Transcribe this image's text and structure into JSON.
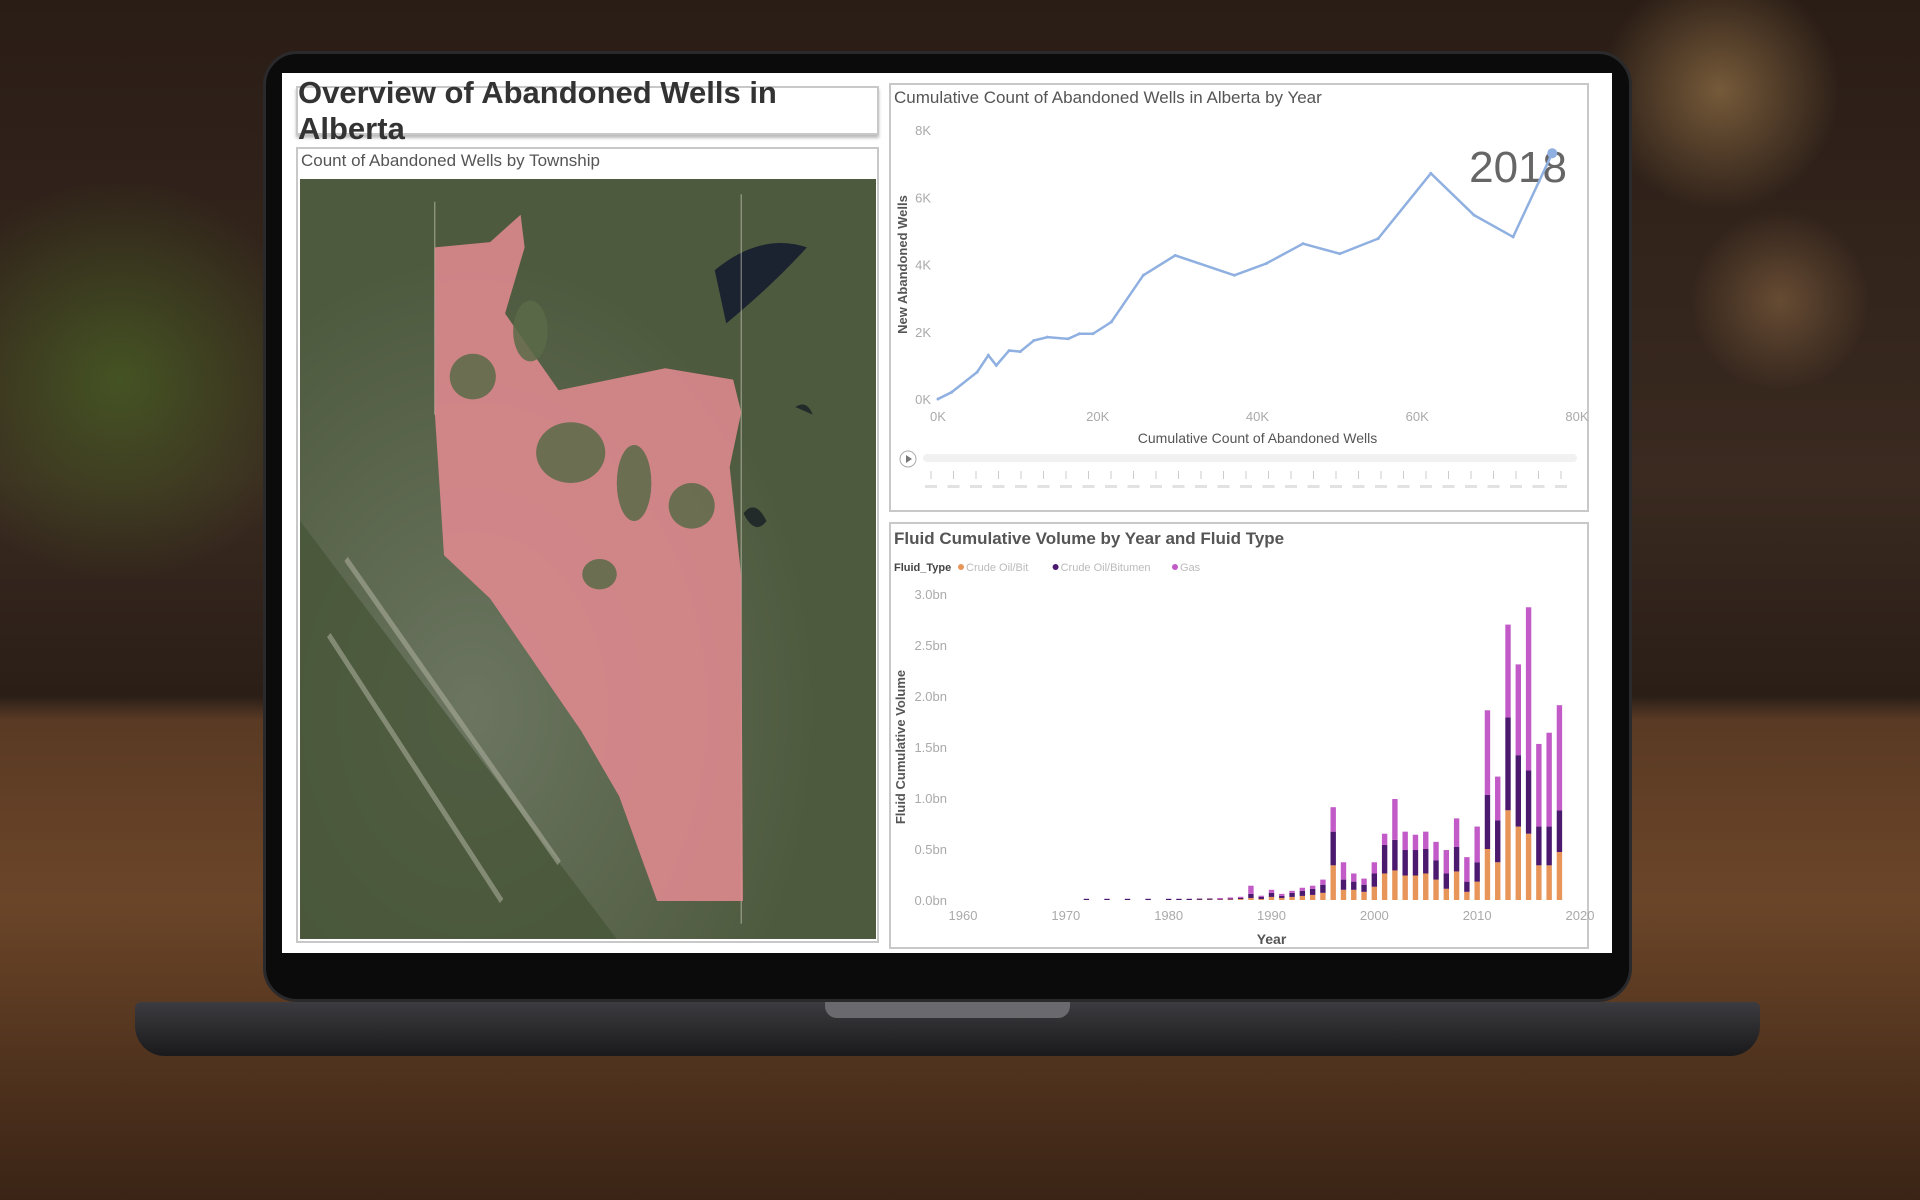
{
  "dashboard": {
    "title": "Overview of Abandoned Wells in Alberta"
  },
  "map": {
    "title": "Count of Abandoned Wells by Township",
    "fill_color": "#e08a8f"
  },
  "line_chart_panel": {
    "play_icon": "play-icon",
    "current_year": "2018"
  },
  "bar_legend": {
    "title": "Fluid_Type"
  },
  "chart_data": [
    {
      "type": "line",
      "title": "Cumulative Count of Abandoned Wells in Alberta by Year",
      "xlabel": "Cumulative Count of Abandoned Wells",
      "ylabel": "New Abandoned Wells",
      "xlim": [
        0,
        80000
      ],
      "ylim": [
        0,
        8000
      ],
      "xticks": [
        "0K",
        "20K",
        "40K",
        "60K",
        "80K"
      ],
      "yticks": [
        "0K",
        "2K",
        "4K",
        "6K",
        "8K"
      ],
      "color": "#8fb0e0",
      "annotation": "2018",
      "x": [
        0,
        1700,
        4900,
        6300,
        7300,
        8900,
        10300,
        12000,
        13700,
        16300,
        17700,
        19400,
        21700,
        25700,
        29700,
        37100,
        41100,
        45700,
        50300,
        55100,
        61700,
        67100,
        72000,
        76900
      ],
      "y": [
        0,
        200,
        800,
        1300,
        1000,
        1440,
        1410,
        1740,
        1840,
        1790,
        1940,
        1940,
        2290,
        3680,
        4270,
        3680,
        4030,
        4620,
        4320,
        4770,
        6710,
        5470,
        4820,
        7310
      ]
    },
    {
      "type": "bar",
      "stacked": true,
      "title": "Fluid Cumulative Volume by Year and Fluid Type",
      "xlabel": "Year",
      "ylabel": "Fluid Cumulative Volume",
      "ylim": [
        0,
        3.0
      ],
      "xlim": [
        1960,
        2020
      ],
      "yticks": [
        "0.0bn",
        "0.5bn",
        "1.0bn",
        "1.5bn",
        "2.0bn",
        "2.5bn",
        "3.0bn"
      ],
      "xticks": [
        "1960",
        "1970",
        "1980",
        "1990",
        "2000",
        "2010",
        "2020"
      ],
      "legend_position": "top-left",
      "categories": [
        1972,
        1974,
        1976,
        1978,
        1980,
        1981,
        1982,
        1983,
        1984,
        1985,
        1986,
        1987,
        1988,
        1989,
        1990,
        1991,
        1992,
        1993,
        1994,
        1995,
        1996,
        1997,
        1998,
        1999,
        2000,
        2001,
        2002,
        2003,
        2004,
        2005,
        2006,
        2007,
        2008,
        2009,
        2010,
        2011,
        2012,
        2013,
        2014,
        2015,
        2016,
        2017,
        2018
      ],
      "series": [
        {
          "name": "Crude Oil/Bit",
          "color": "#e8955a",
          "values": [
            0,
            0,
            0,
            0,
            0,
            0,
            0,
            0.002,
            0.003,
            0.003,
            0.005,
            0.01,
            0.02,
            0.01,
            0.03,
            0.02,
            0.03,
            0.04,
            0.05,
            0.07,
            0.34,
            0.1,
            0.1,
            0.08,
            0.13,
            0.26,
            0.29,
            0.24,
            0.24,
            0.26,
            0.2,
            0.11,
            0.28,
            0.08,
            0.18,
            0.5,
            0.37,
            0.88,
            0.72,
            0.65,
            0.34,
            0.34,
            0.47
          ]
        },
        {
          "name": "Crude Oil/Bitumen",
          "color": "#4b1a6e",
          "values": [
            0.002,
            0.002,
            0.002,
            0.002,
            0.003,
            0.003,
            0.004,
            0.004,
            0.005,
            0.005,
            0.008,
            0.01,
            0.04,
            0.02,
            0.04,
            0.02,
            0.04,
            0.05,
            0.06,
            0.08,
            0.33,
            0.1,
            0.08,
            0.07,
            0.13,
            0.28,
            0.3,
            0.25,
            0.25,
            0.24,
            0.19,
            0.15,
            0.24,
            0.1,
            0.19,
            0.53,
            0.41,
            0.91,
            0.7,
            0.62,
            0.38,
            0.38,
            0.41
          ]
        },
        {
          "name": "Gas",
          "color": "#c25bc7",
          "values": [
            0,
            0,
            0,
            0,
            0,
            0,
            0,
            0,
            0,
            0.002,
            0.004,
            0.01,
            0.08,
            0.01,
            0.03,
            0.02,
            0.02,
            0.03,
            0.03,
            0.05,
            0.24,
            0.17,
            0.08,
            0.06,
            0.11,
            0.11,
            0.4,
            0.18,
            0.15,
            0.17,
            0.18,
            0.23,
            0.28,
            0.24,
            0.35,
            0.83,
            0.43,
            0.91,
            0.89,
            1.6,
            0.81,
            0.92,
            1.03
          ]
        }
      ]
    }
  ]
}
